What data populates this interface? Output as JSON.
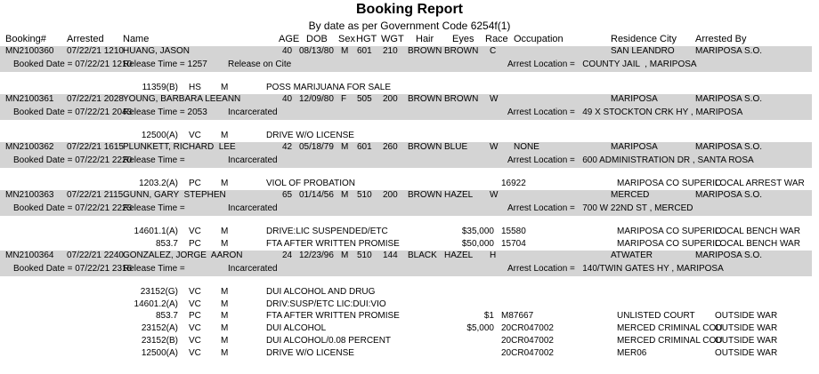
{
  "header": {
    "title": "Booking Report",
    "subtitle": "By date as per Government Code 6254f(1)",
    "columns": [
      "Booking#",
      "Arrested",
      "Name",
      "AGE",
      "DOB",
      "Sex",
      "HGT",
      "WGT",
      "Hair",
      "Eyes",
      "Race",
      "Occupation",
      "Residence City",
      "Arrested By"
    ]
  },
  "records": [
    {
      "booking": "MN2100360",
      "arrested": "07/22/21 1210",
      "name": "HUANG, JASON",
      "age": "40",
      "dob": "08/13/80",
      "sex": "M",
      "hgt": "601",
      "wgt": "210",
      "hair": "BROWN",
      "eyes": "BROWN",
      "race": "C",
      "residence_city": "SAN LEANDRO",
      "arrested_by": "MARIPOSA S.O.",
      "booked_date": "Booked Date = 07/22/21 1210",
      "release_time": "Release Time = 1257",
      "release_type": "Release on Cite",
      "arrest_location": "Arrest Location =   COUNTY JAIL  , MARIPOSA",
      "charges": [
        {
          "code": "11359(B)",
          "type": "HS",
          "level": "M",
          "description": "POSS MARIJUANA FOR SALE"
        }
      ]
    },
    {
      "booking": "MN2100361",
      "arrested": "07/22/21 2028",
      "name": "YOUNG, BARBARA LEEANN",
      "age": "40",
      "dob": "12/09/80",
      "sex": "F",
      "hgt": "505",
      "wgt": "200",
      "hair": "BROWN",
      "eyes": "BROWN",
      "race": "W",
      "residence_city": "MARIPOSA",
      "arrested_by": "MARIPOSA S.O.",
      "booked_date": "Booked Date = 07/22/21 2043",
      "release_time": "Release Time = 2053",
      "release_type": "Incarcerated",
      "arrest_location": "Arrest Location =   49 X STOCKTON CRK HY , MARIPOSA",
      "charges": [
        {
          "code": "12500(A)",
          "type": "VC",
          "level": "M",
          "description": "DRIVE W/O LICENSE"
        }
      ]
    },
    {
      "booking": "MN2100362",
      "arrested": "07/22/21 1615",
      "name": "PLUNKETT, RICHARD  LEE",
      "age": "42",
      "dob": "05/18/79",
      "sex": "M",
      "hgt": "601",
      "wgt": "260",
      "hair": "BROWN",
      "eyes": "BLUE",
      "race": "W",
      "occupation": "NONE",
      "residence_city": "MARIPOSA",
      "arrested_by": "MARIPOSA S.O.",
      "booked_date": "Booked Date = 07/22/21 2220",
      "release_time": "Release Time =",
      "release_type": "Incarcerated",
      "arrest_location": "Arrest Location =   600 ADMINISTRATION DR , SANTA ROSA",
      "charges": [
        {
          "code": "1203.2(A)",
          "type": "PC",
          "level": "M",
          "description": "VIOL OF PROBATION",
          "case": "16922",
          "court": "MARIPOSA CO SUPERIC",
          "warrant": "LOCAL ARREST WAR"
        }
      ]
    },
    {
      "booking": "MN2100363",
      "arrested": "07/22/21 2115",
      "name": "GUNN, GARY  STEPHEN",
      "age": "65",
      "dob": "01/14/56",
      "sex": "M",
      "hgt": "510",
      "wgt": "200",
      "hair": "BROWN",
      "eyes": "HAZEL",
      "race": "W",
      "residence_city": "MERCED",
      "arrested_by": "MARIPOSA S.O.",
      "booked_date": "Booked Date = 07/22/21 2223",
      "release_time": "Release Time =",
      "release_type": "Incarcerated",
      "arrest_location": "Arrest Location =   700 W 22ND ST , MERCED",
      "charges": [
        {
          "code": "14601.1(A)",
          "type": "VC",
          "level": "M",
          "description": "DRIVE:LIC SUSPENDED/ETC",
          "bail": "$35,000",
          "case": "15580",
          "court": "MARIPOSA CO SUPERIC",
          "warrant": "LOCAL BENCH WAR"
        },
        {
          "code": "853.7",
          "type": "PC",
          "level": "M",
          "description": "FTA AFTER WRITTEN PROMISE",
          "bail": "$50,000",
          "case": "15704",
          "court": "MARIPOSA CO SUPERIC",
          "warrant": "LOCAL BENCH WAR"
        }
      ]
    },
    {
      "booking": "MN2100364",
      "arrested": "07/22/21 2240",
      "name": "GONZALEZ, JORGE  AARON",
      "age": "24",
      "dob": "12/23/96",
      "sex": "M",
      "hgt": "510",
      "wgt": "144",
      "hair": "BLACK",
      "eyes": "HAZEL",
      "race": "H",
      "residence_city": "ATWATER",
      "arrested_by": "MARIPOSA S.O.",
      "booked_date": "Booked Date = 07/22/21 2316",
      "release_time": "Release Time =",
      "release_type": "Incarcerated",
      "arrest_location": "Arrest Location =   140/TWIN GATES HY , MARIPOSA",
      "charges": [
        {
          "code": "23152(G)",
          "type": "VC",
          "level": "M",
          "description": "DUI ALCOHOL AND DRUG"
        },
        {
          "code": "14601.2(A)",
          "type": "VC",
          "level": "M",
          "description": "DRIV:SUSP/ETC LIC:DUI:VIO"
        },
        {
          "code": "853.7",
          "type": "PC",
          "level": "M",
          "description": "FTA AFTER WRITTEN PROMISE",
          "bail": "$1",
          "case": "M87667",
          "court": "UNLISTED COURT",
          "warrant": "OUTSIDE WAR"
        },
        {
          "code": "23152(A)",
          "type": "VC",
          "level": "M",
          "description": "DUI ALCOHOL",
          "bail": "$5,000",
          "case": "20CR047002",
          "court": "MERCED CRIMINAL COU",
          "warrant": "OUTSIDE WAR"
        },
        {
          "code": "23152(B)",
          "type": "VC",
          "level": "M",
          "description": "DUI ALCOHOL/0.08 PERCENT",
          "case": "20CR047002",
          "court": "MERCED CRIMINAL COU",
          "warrant": "OUTSIDE WAR"
        },
        {
          "code": "12500(A)",
          "type": "VC",
          "level": "M",
          "description": "DRIVE W/O LICENSE",
          "case": "20CR047002",
          "court": "MER06",
          "warrant": "OUTSIDE WAR"
        }
      ]
    }
  ]
}
